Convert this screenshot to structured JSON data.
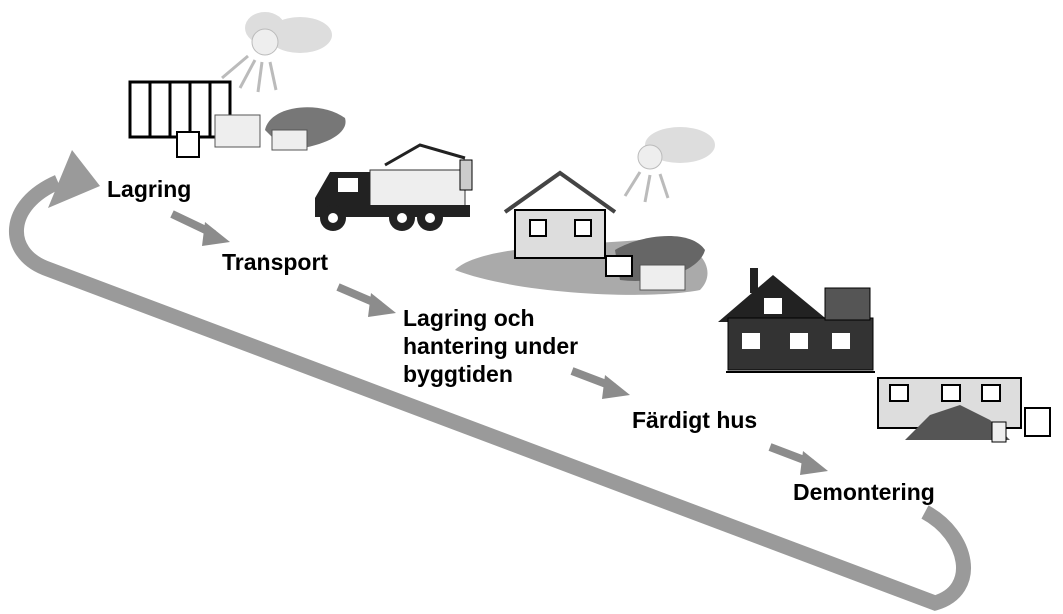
{
  "stages": [
    {
      "label": "Lagring"
    },
    {
      "label": "Transport"
    },
    {
      "lines": [
        "Lagring och",
        "hantering under",
        "byggtiden"
      ]
    },
    {
      "label": "Färdigt hus"
    },
    {
      "label": "Demontering"
    }
  ]
}
